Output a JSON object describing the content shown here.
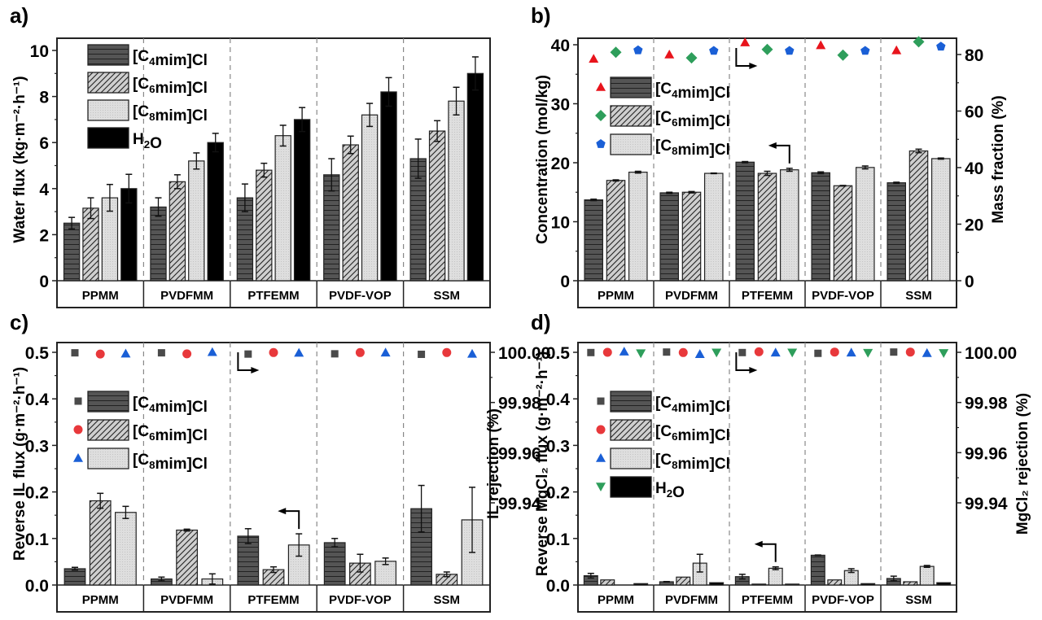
{
  "chart_data": [
    {
      "id": "a",
      "panel_label": "a)",
      "type": "bar",
      "categories": [
        "PPMM",
        "PVDFMM",
        "PTFEMM",
        "PVDF-VOP",
        "SSM"
      ],
      "ylabel": "Water flux (kg·m⁻²·h⁻¹)",
      "ylim": [
        0,
        10.5
      ],
      "yticks": [
        0,
        2,
        4,
        6,
        8,
        10
      ],
      "legend": "top-left",
      "series": [
        {
          "name": "[C4mim]Cl",
          "pattern": "hlines",
          "values": [
            2.5,
            3.2,
            3.6,
            4.6,
            5.3
          ],
          "errors": [
            0.25,
            0.4,
            0.6,
            0.7,
            0.85
          ]
        },
        {
          "name": "[C6mim]Cl",
          "pattern": "diag",
          "values": [
            3.15,
            4.3,
            4.8,
            5.9,
            6.5
          ],
          "errors": [
            0.45,
            0.3,
            0.3,
            0.38,
            0.45
          ]
        },
        {
          "name": "[C8mim]Cl",
          "pattern": "dots",
          "values": [
            3.6,
            5.2,
            6.3,
            7.2,
            7.8
          ],
          "errors": [
            0.58,
            0.35,
            0.45,
            0.5,
            0.6
          ]
        },
        {
          "name": "H2O",
          "pattern": "solid",
          "values": [
            4.0,
            6.0,
            7.0,
            8.2,
            9.0
          ],
          "errors": [
            0.62,
            0.4,
            0.52,
            0.62,
            0.72
          ]
        }
      ]
    },
    {
      "id": "b",
      "panel_label": "b)",
      "type": "bar",
      "categories": [
        "PPMM",
        "PVDFMM",
        "PTFEMM",
        "PVDF-VOP",
        "SSM"
      ],
      "ylabel": "Concentration (mol/kg)",
      "ylim": [
        0,
        41
      ],
      "yticks": [
        0,
        10,
        20,
        30,
        40
      ],
      "y2label": "Mass fraction (%)",
      "y2lim": [
        0,
        86
      ],
      "y2ticks": [
        0,
        20,
        40,
        60,
        80
      ],
      "legend": "top-left",
      "series": [
        {
          "name": "[C4mim]Cl",
          "pattern": "hlines",
          "values": [
            13.7,
            14.9,
            20.1,
            18.3,
            16.6
          ],
          "errors": [
            0.12,
            0.1,
            0.1,
            0.15,
            0.1
          ],
          "marker": "triangle",
          "marker_color": "#e8141c",
          "mass_fraction": [
            78.5,
            80.0,
            84.3,
            83.3,
            81.5
          ]
        },
        {
          "name": "[C6mim]Cl",
          "pattern": "diag",
          "values": [
            17.0,
            15.0,
            18.2,
            16.1,
            22.0
          ],
          "errors": [
            0.1,
            0.12,
            0.35,
            0.05,
            0.3
          ],
          "marker": "diamond",
          "marker_color": "#2e9e5b",
          "mass_fraction": [
            80.8,
            78.8,
            81.8,
            79.8,
            84.5
          ]
        },
        {
          "name": "[C8mim]Cl",
          "pattern": "dots",
          "values": [
            18.4,
            18.2,
            18.8,
            19.2,
            20.7
          ],
          "errors": [
            0.15,
            0.05,
            0.25,
            0.25,
            0.1
          ],
          "marker": "pentagon",
          "marker_color": "#1a5fd6",
          "mass_fraction": [
            81.5,
            81.3,
            81.3,
            81.3,
            82.8
          ]
        }
      ]
    },
    {
      "id": "c",
      "panel_label": "c)",
      "type": "bar",
      "categories": [
        "PPMM",
        "PVDFMM",
        "PTFEMM",
        "PVDF-VOP",
        "SSM"
      ],
      "ylabel": "Reverse IL flux (g·m⁻²·h⁻¹)",
      "ylim": [
        0,
        0.52
      ],
      "yticks": [
        0.0,
        0.1,
        0.2,
        0.3,
        0.4,
        0.5
      ],
      "y2label": "IL rejection (%)",
      "y2lim": [
        99.932,
        100.004
      ],
      "y2ticks": [
        99.94,
        99.96,
        99.98,
        100.0
      ],
      "legend": "top-left",
      "series": [
        {
          "name": "[C4mim]Cl",
          "pattern": "hlines",
          "values": [
            0.035,
            0.013,
            0.105,
            0.091,
            0.164
          ],
          "errors": [
            0.003,
            0.004,
            0.016,
            0.009,
            0.05
          ],
          "marker": "square",
          "marker_color": "#4a4a4a",
          "rejection": [
            99.9998,
            99.9998,
            99.9993,
            99.9994,
            99.9992
          ]
        },
        {
          "name": "[C6mim]Cl",
          "pattern": "diag",
          "values": [
            0.181,
            0.118,
            0.033,
            0.047,
            0.023
          ],
          "errors": [
            0.016,
            0.002,
            0.006,
            0.019,
            0.005
          ],
          "marker": "circle",
          "marker_color": "#e8383b",
          "rejection": [
            99.9993,
            99.9994,
            99.9999,
            99.9999,
            99.9999
          ]
        },
        {
          "name": "[C8mim]Cl",
          "pattern": "dots",
          "values": [
            0.156,
            0.013,
            0.086,
            0.051,
            0.14
          ],
          "errors": [
            0.013,
            0.011,
            0.024,
            0.007,
            0.07
          ],
          "marker": "triangle",
          "marker_color": "#1a5fd6",
          "rejection": [
            99.9995,
            100.0001,
            99.9998,
            99.9999,
            99.9994
          ]
        }
      ]
    },
    {
      "id": "d",
      "panel_label": "d)",
      "type": "bar",
      "categories": [
        "PPMM",
        "PVDFMM",
        "PTFEMM",
        "PVDF-VOP",
        "SSM"
      ],
      "ylabel": "Reverse MgCl₂ flux (g·m⁻²·h⁻¹)",
      "ylim": [
        0,
        0.52
      ],
      "yticks": [
        0.0,
        0.1,
        0.2,
        0.3,
        0.4,
        0.5
      ],
      "y2label": "MgCl₂ rejection (%)",
      "y2lim": [
        99.932,
        100.004
      ],
      "y2ticks": [
        99.94,
        99.96,
        99.98,
        100.0
      ],
      "legend": "top-left",
      "series": [
        {
          "name": "[C4mim]Cl",
          "pattern": "hlines",
          "values": [
            0.02,
            0.007,
            0.018,
            0.064,
            0.014
          ],
          "errors": [
            0.005,
            0.0005,
            0.005,
            0.0005,
            0.005
          ],
          "marker": "square",
          "marker_color": "#4a4a4a",
          "rejection": [
            99.9999,
            100.0001,
            99.9999,
            99.9996,
            100.0001
          ]
        },
        {
          "name": "[C6mim]Cl",
          "pattern": "diag",
          "values": [
            0.011,
            0.017,
            0.002,
            0.011,
            0.007
          ],
          "errors": [
            0,
            0,
            0,
            0,
            0
          ],
          "marker": "circle",
          "marker_color": "#e8383b",
          "rejection": [
            100.0,
            99.9999,
            100.0002,
            100.0001,
            100.0001
          ]
        },
        {
          "name": "[C8mim]Cl",
          "pattern": "dots",
          "values": [
            0.0,
            0.047,
            0.036,
            0.031,
            0.04
          ],
          "errors": [
            0,
            0.019,
            0.003,
            0.004,
            0.002
          ],
          "marker": "triangle",
          "marker_color": "#1a5fd6",
          "rejection": [
            100.0003,
            99.9993,
            99.9999,
            99.9999,
            99.9997
          ]
        },
        {
          "name": "H2O",
          "pattern": "solid",
          "values": [
            0.003,
            0.005,
            0.002,
            0.003,
            0.005
          ],
          "errors": [
            0,
            0,
            0,
            0,
            0
          ],
          "marker": "triangle-down",
          "marker_color": "#2e9e5b",
          "rejection": [
            99.9996,
            99.9999,
            99.9999,
            99.9998,
            99.9997
          ]
        }
      ]
    }
  ],
  "legend_labels": {
    "c4": "[C4mim]Cl",
    "c6": "[C6mim]Cl",
    "c8": "[C8mim]Cl",
    "h2o": "H2O"
  }
}
